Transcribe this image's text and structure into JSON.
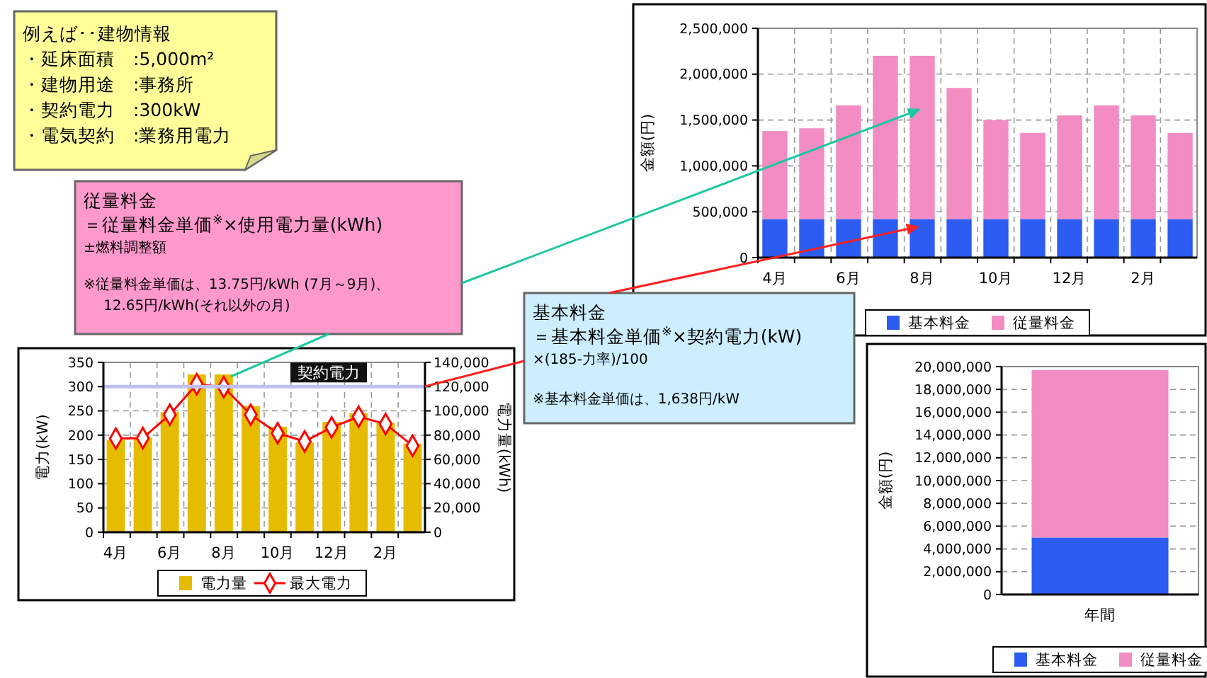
{
  "chart_data": [
    {
      "type": "other",
      "title": "例えば･･建物情報",
      "annotations": [
        "・延床面積　:5,000m²",
        "・建物用途　:事務所",
        "・契約電力　:300kW",
        "・電気契約　:業務用電力"
      ]
    },
    {
      "type": "bar",
      "stacked": true,
      "categories": [
        "4月",
        null,
        "6月",
        null,
        "8月",
        null,
        "10月",
        null,
        "12月",
        null,
        "2月",
        null
      ],
      "ylabel": "金額(円)",
      "ylim": [
        0,
        2500000
      ],
      "yticks": [
        0,
        {
          "value": 500000,
          "label": "500,000"
        },
        {
          "value": 1000000,
          "label": "1,000,000"
        },
        {
          "value": 1500000,
          "label": "1,500,000"
        },
        {
          "value": 2000000,
          "label": "2,000,000"
        },
        {
          "value": 2500000,
          "label": "2,500,000"
        }
      ],
      "grid": true,
      "legend": "bottom",
      "series": [
        {
          "name": "基本料金",
          "color": "#2d5cf2",
          "values": [
            420000,
            420000,
            420000,
            420000,
            420000,
            420000,
            420000,
            420000,
            420000,
            420000,
            420000,
            420000
          ]
        },
        {
          "name": "従量料金",
          "color": "#f28cc2",
          "values": [
            960000,
            990000,
            1240000,
            1780000,
            1780000,
            1430000,
            1080000,
            940000,
            1130000,
            1240000,
            1130000,
            940000
          ]
        }
      ]
    },
    {
      "type": "other",
      "title": "従量料金",
      "annotations": [
        "＝従量料金単価$^{※}$×使用電力量(kWh)",
        "±燃料調整額",
        "※従量料金単価は、13.75円/kWh (7月～9月)、",
        "12.65円/kWh(それ以外の月)"
      ]
    },
    {
      "type": "other",
      "title": "基本料金",
      "annotations": [
        "＝基本料金単価$^{※}$×契約電力(kW)",
        "×(185-力率)/100",
        "※基本料金単価は、1,638円/kW"
      ]
    },
    {
      "type": "bar",
      "categories": [
        "4月",
        null,
        "6月",
        null,
        "8月",
        null,
        "10月",
        null,
        "12月",
        null,
        "2月",
        null
      ],
      "ylabel": "電力(kW)",
      "y2label": "電力量(kWh)",
      "ylim": [
        0,
        350
      ],
      "yticks": [
        0,
        50,
        100,
        150,
        200,
        250,
        300,
        350
      ],
      "y2lim": [
        0,
        140000
      ],
      "y2ticks": [
        0,
        {
          "value": 20000,
          "label": "20,000"
        },
        {
          "value": 40000,
          "label": "40,000"
        },
        {
          "value": 60000,
          "label": "60,000"
        },
        {
          "value": 80000,
          "label": "80,000"
        },
        {
          "value": 100000,
          "label": "100,000"
        },
        {
          "value": 120000,
          "label": "120,000"
        },
        {
          "value": 140000,
          "label": "140,000"
        }
      ],
      "grid": true,
      "legend": "bottom",
      "marker": "diamond",
      "ref_lines": [
        {
          "axis": "y",
          "value": 300,
          "label": "契約電力",
          "color": "#c0c0f0"
        }
      ],
      "series": [
        {
          "name": "電力量",
          "type": "bar",
          "axis": "y2",
          "color": "#e6bc00",
          "values": [
            76000,
            78000,
            99000,
            130000,
            130000,
            104000,
            87000,
            74000,
            91000,
            98000,
            90000,
            73000
          ]
        },
        {
          "name": "最大電力",
          "type": "line",
          "color": "#ff0000",
          "values": [
            193,
            194,
            242,
            305,
            299,
            242,
            204,
            187,
            216,
            238,
            223,
            178
          ]
        }
      ]
    },
    {
      "type": "bar",
      "stacked": true,
      "categories": [
        "年間"
      ],
      "ylabel": "金額(円)",
      "ylim": [
        0,
        20000000
      ],
      "yticks": [
        0,
        {
          "value": 2000000,
          "label": "2,000,000"
        },
        {
          "value": 4000000,
          "label": "4,000,000"
        },
        {
          "value": 6000000,
          "label": "6,000,000"
        },
        {
          "value": 8000000,
          "label": "8,000,000"
        },
        {
          "value": 10000000,
          "label": "10,000,000"
        },
        {
          "value": 12000000,
          "label": "12,000,000"
        },
        {
          "value": 14000000,
          "label": "14,000,000"
        },
        {
          "value": 16000000,
          "label": "16,000,000"
        },
        {
          "value": 18000000,
          "label": "18,000,000"
        },
        {
          "value": 20000000,
          "label": "20,000,000"
        }
      ],
      "grid": "y",
      "legend": "bottom",
      "series": [
        {
          "name": "基本料金",
          "color": "#2d5cf2",
          "values": [
            5000000
          ]
        },
        {
          "name": "従量料金",
          "color": "#f28cc2",
          "values": [
            14700000
          ]
        }
      ]
    }
  ]
}
